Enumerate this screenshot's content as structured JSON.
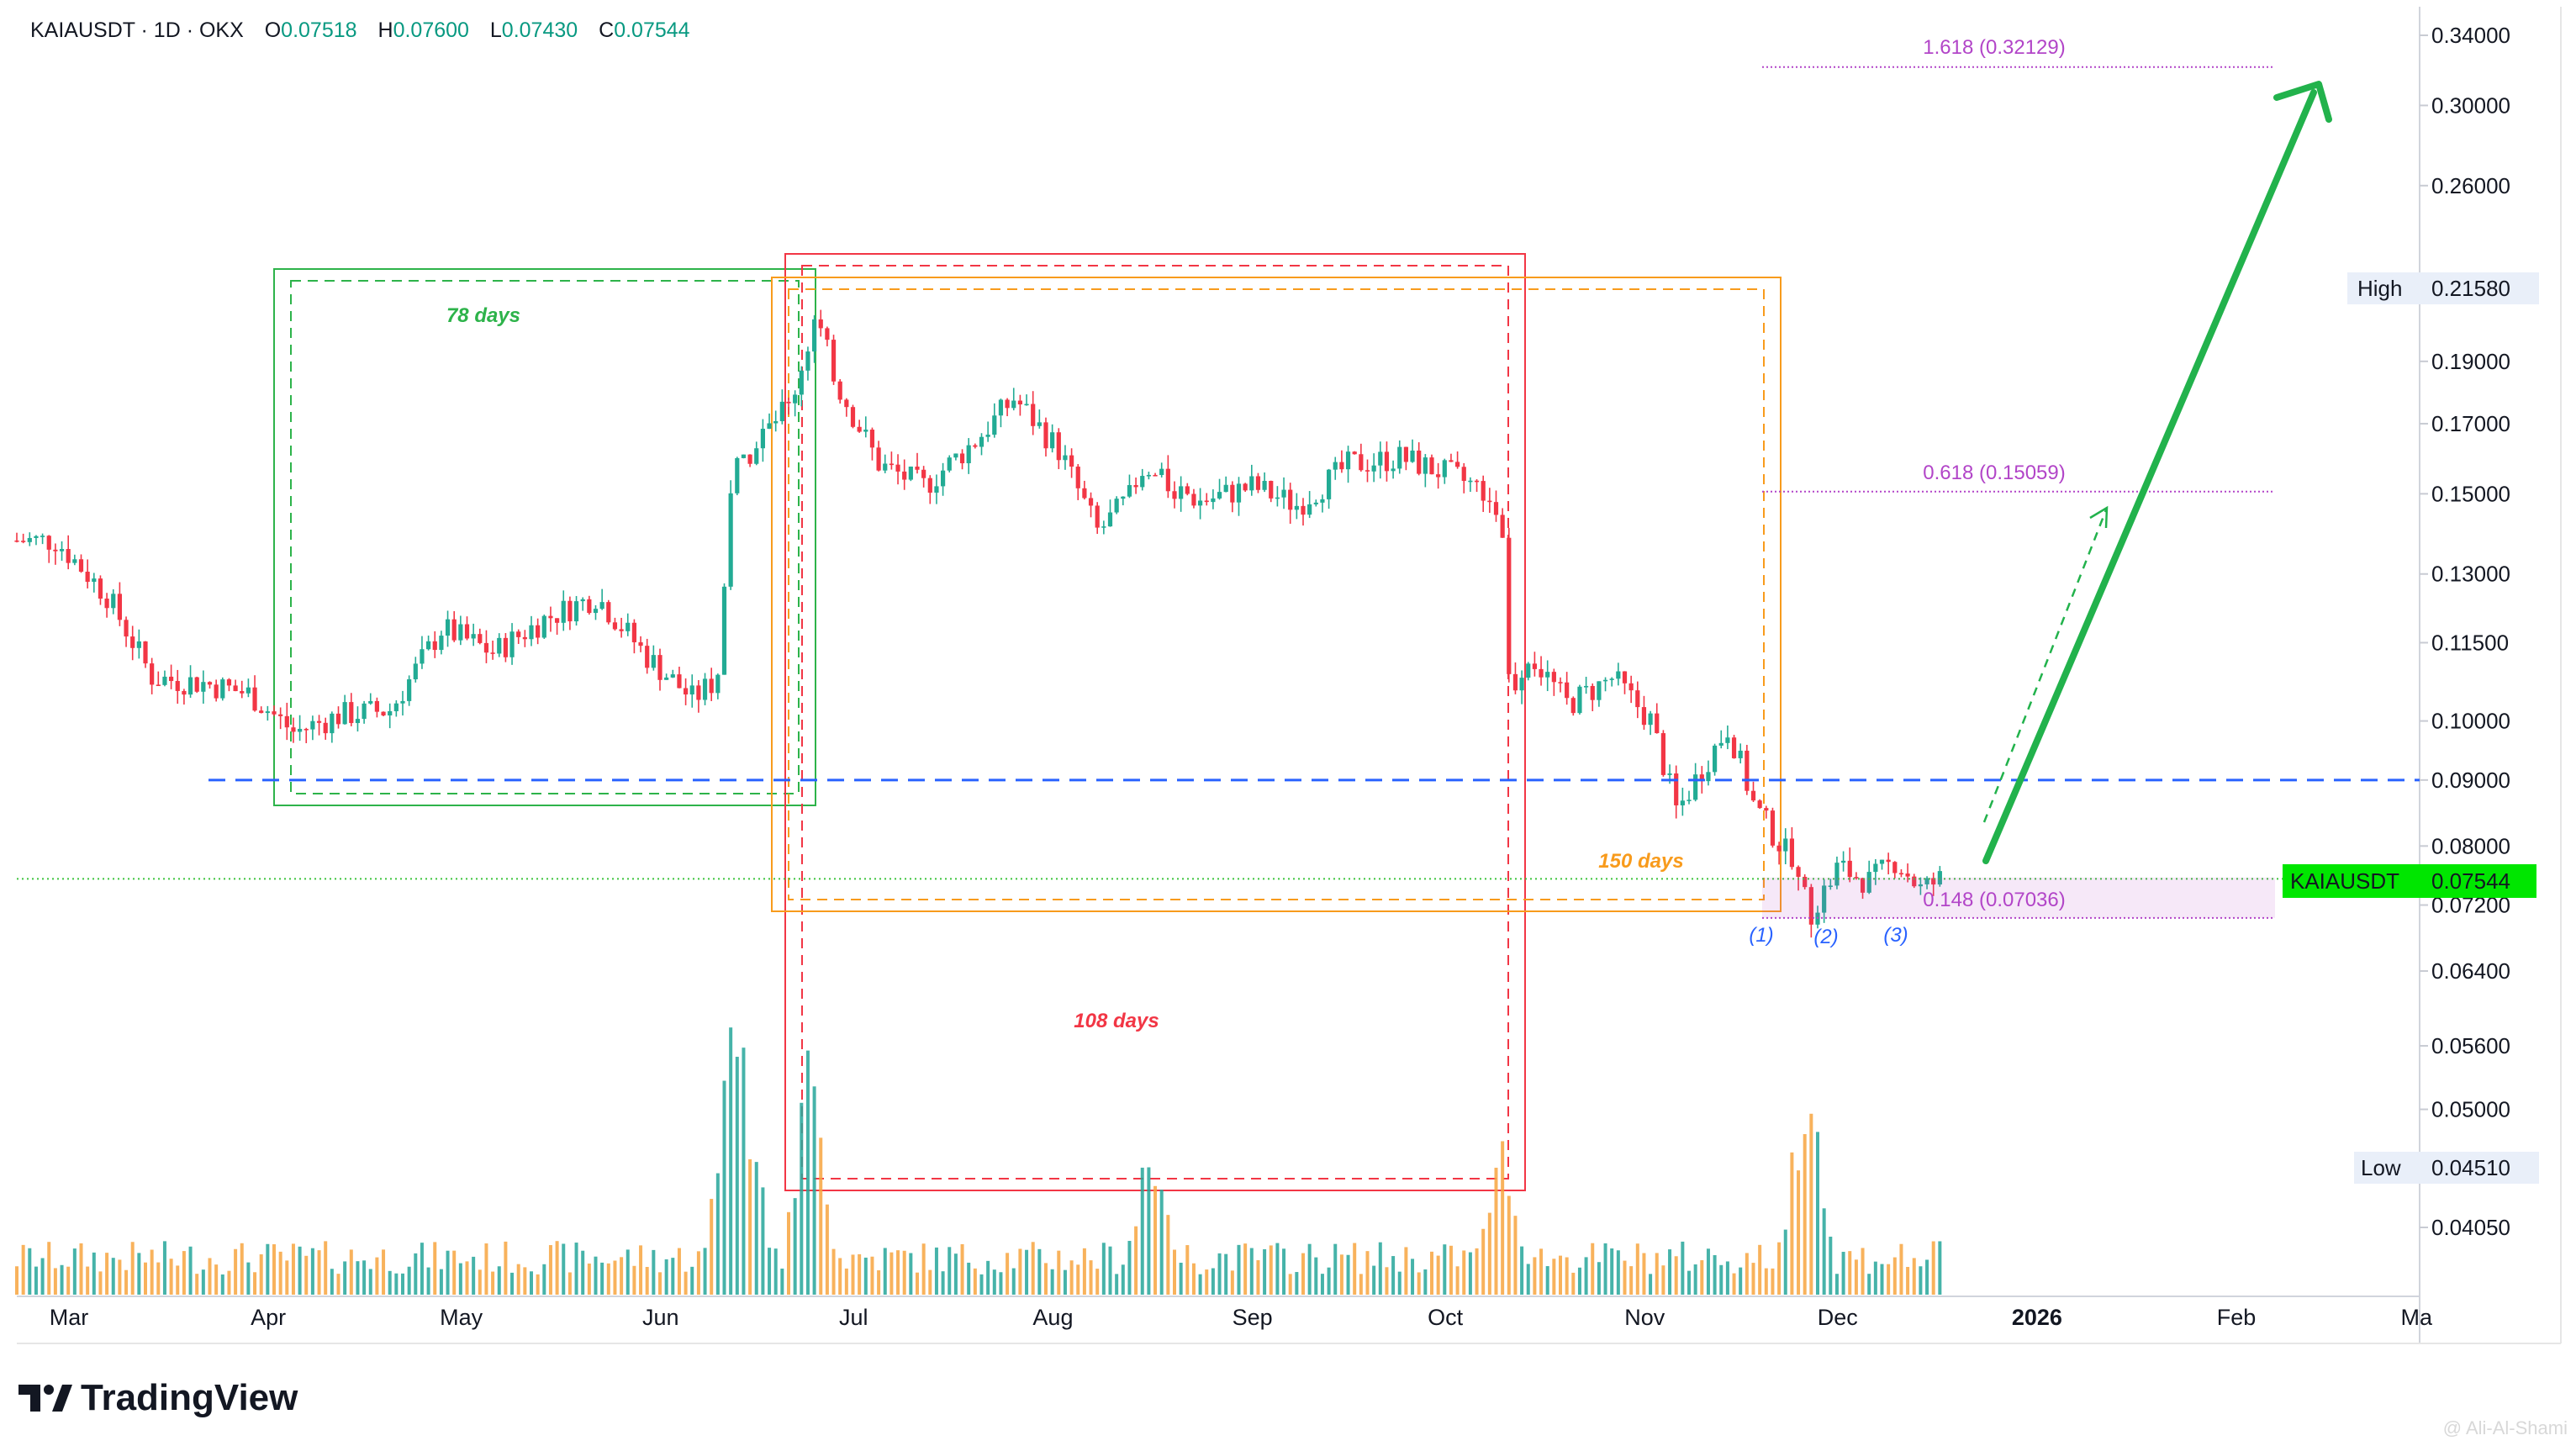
{
  "header": {
    "symbol": "KAIAUSDT · 1D · OKX",
    "open_label": "O",
    "open": "0.07518",
    "high_label": "H",
    "high": "0.07600",
    "low_label": "L",
    "low": "0.07430",
    "close_label": "C",
    "close": "0.07544"
  },
  "branding": {
    "name": "TradingView",
    "watermark": "@ Ali-Al-Shami"
  },
  "colors": {
    "up": "#22ab94",
    "down": "#f23645",
    "vol_up": "#26a69a",
    "vol_down": "#f7a440",
    "green_box": "#2db34a",
    "red_box": "#f23645",
    "orange_box": "#f89b1c",
    "fib": "#b245c8",
    "support": "#2962ff",
    "arrow": "#22b24c",
    "price_tag": "#00e600"
  },
  "chart_data": {
    "type": "candlestick",
    "price_scale": "log",
    "y_ticks": [
      "0.34000",
      "0.30000",
      "0.26000",
      "0.19000",
      "0.17000",
      "0.15000",
      "0.13000",
      "0.11500",
      "0.10000",
      "0.09000",
      "0.08000",
      "0.07200",
      "0.06400",
      "0.05600",
      "0.05000",
      "0.04050"
    ],
    "x_ticks": [
      "Mar",
      "Apr",
      "May",
      "Jun",
      "Jul",
      "Aug",
      "Sep",
      "Oct",
      "Nov",
      "Dec",
      "2026",
      "Feb",
      "Ma"
    ],
    "high_marker": {
      "label": "High",
      "value": "0.21580"
    },
    "low_marker": {
      "label": "Low",
      "value": "0.04510"
    },
    "last_price": {
      "label": "KAIAUSDT",
      "value": "0.07544"
    },
    "fib_levels": [
      {
        "label": "1.618 (0.32129)",
        "value": 0.32129
      },
      {
        "label": "0.618 (0.15059)",
        "value": 0.15059
      },
      {
        "label": "0.148 (0.07036)",
        "value": 0.07036
      }
    ],
    "support_level": 0.09,
    "cycles": [
      {
        "label": "78 days",
        "color": "green"
      },
      {
        "label": "108 days",
        "color": "red"
      },
      {
        "label": "150 days",
        "color": "orange"
      }
    ],
    "wave_labels": [
      "(1)",
      "(2)",
      "(3)"
    ],
    "price_path": [
      {
        "date": "2025-02-27",
        "price": 0.138
      },
      {
        "date": "2025-03-07",
        "price": 0.125
      },
      {
        "date": "2025-03-14",
        "price": 0.108
      },
      {
        "date": "2025-03-22",
        "price": 0.107
      },
      {
        "date": "2025-03-29",
        "price": 0.105
      },
      {
        "date": "2025-04-05",
        "price": 0.098
      },
      {
        "date": "2025-04-12",
        "price": 0.101
      },
      {
        "date": "2025-04-20",
        "price": 0.102
      },
      {
        "date": "2025-04-28",
        "price": 0.118
      },
      {
        "date": "2025-05-06",
        "price": 0.113
      },
      {
        "date": "2025-05-14",
        "price": 0.12
      },
      {
        "date": "2025-05-22",
        "price": 0.125
      },
      {
        "date": "2025-05-30",
        "price": 0.112
      },
      {
        "date": "2025-06-06",
        "price": 0.104
      },
      {
        "date": "2025-06-10",
        "price": 0.108
      },
      {
        "date": "2025-06-12",
        "price": 0.155
      },
      {
        "date": "2025-06-16",
        "price": 0.165
      },
      {
        "date": "2025-06-21",
        "price": 0.175
      },
      {
        "date": "2025-06-25",
        "price": 0.205
      },
      {
        "date": "2025-06-29",
        "price": 0.18
      },
      {
        "date": "2025-07-05",
        "price": 0.158
      },
      {
        "date": "2025-07-12",
        "price": 0.152
      },
      {
        "date": "2025-07-20",
        "price": 0.165
      },
      {
        "date": "2025-07-26",
        "price": 0.178
      },
      {
        "date": "2025-08-02",
        "price": 0.162
      },
      {
        "date": "2025-08-08",
        "price": 0.14
      },
      {
        "date": "2025-08-16",
        "price": 0.155
      },
      {
        "date": "2025-08-24",
        "price": 0.148
      },
      {
        "date": "2025-09-01",
        "price": 0.152
      },
      {
        "date": "2025-09-08",
        "price": 0.147
      },
      {
        "date": "2025-09-16",
        "price": 0.158
      },
      {
        "date": "2025-09-24",
        "price": 0.16
      },
      {
        "date": "2025-10-02",
        "price": 0.155
      },
      {
        "date": "2025-10-08",
        "price": 0.15
      },
      {
        "date": "2025-10-10",
        "price": 0.14
      },
      {
        "date": "2025-10-11",
        "price": 0.105
      },
      {
        "date": "2025-10-14",
        "price": 0.113
      },
      {
        "date": "2025-10-20",
        "price": 0.103
      },
      {
        "date": "2025-10-27",
        "price": 0.108
      },
      {
        "date": "2025-11-02",
        "price": 0.1
      },
      {
        "date": "2025-11-06",
        "price": 0.085
      },
      {
        "date": "2025-11-10",
        "price": 0.092
      },
      {
        "date": "2025-11-14",
        "price": 0.099
      },
      {
        "date": "2025-11-18",
        "price": 0.086
      },
      {
        "date": "2025-11-23",
        "price": 0.079
      },
      {
        "date": "2025-11-27",
        "price": 0.071
      },
      {
        "date": "2025-12-01",
        "price": 0.077
      },
      {
        "date": "2025-12-06",
        "price": 0.075
      },
      {
        "date": "2025-12-10",
        "price": 0.078
      },
      {
        "date": "2025-12-14",
        "price": 0.074
      },
      {
        "date": "2025-12-17",
        "price": 0.0754
      }
    ],
    "volume_spikes": [
      {
        "date": "2025-06-12",
        "rel": 0.95
      },
      {
        "date": "2025-06-14",
        "rel": 0.75
      },
      {
        "date": "2025-06-24",
        "rel": 0.8
      },
      {
        "date": "2025-08-16",
        "rel": 0.55
      },
      {
        "date": "2025-10-10",
        "rel": 0.5
      },
      {
        "date": "2025-11-26",
        "rel": 0.78
      }
    ]
  }
}
